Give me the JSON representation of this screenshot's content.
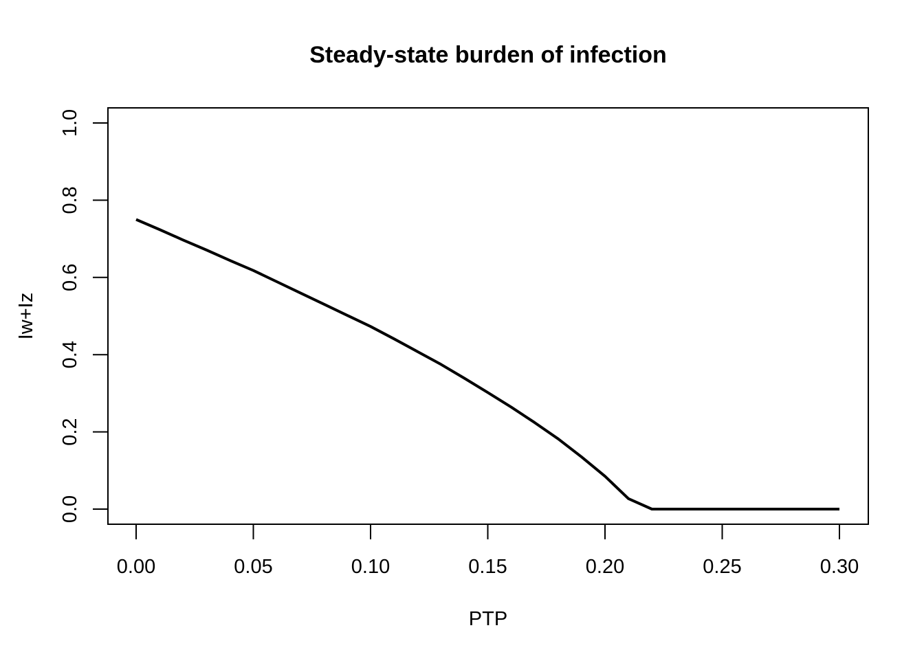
{
  "chart_data": {
    "type": "line",
    "title": "Steady-state burden of infection",
    "xlabel": "PTP",
    "ylabel": "Iw+Iz",
    "xlim": [
      0.0,
      0.3
    ],
    "ylim": [
      0.0,
      1.0
    ],
    "x_ticks": [
      "0.00",
      "0.05",
      "0.10",
      "0.15",
      "0.20",
      "0.25",
      "0.30"
    ],
    "y_ticks": [
      "0.0",
      "0.2",
      "0.4",
      "0.6",
      "0.8",
      "1.0"
    ],
    "grid": false,
    "legend": "none",
    "line_color": "#000000",
    "series": [
      {
        "x": [
          0.0,
          0.01,
          0.02,
          0.03,
          0.04,
          0.05,
          0.06,
          0.07,
          0.08,
          0.09,
          0.1,
          0.11,
          0.12,
          0.13,
          0.14,
          0.15,
          0.16,
          0.17,
          0.18,
          0.19,
          0.2,
          0.21,
          0.22,
          0.23,
          0.24,
          0.25,
          0.26,
          0.27,
          0.28,
          0.29,
          0.3
        ],
        "values": [
          0.75,
          0.724,
          0.697,
          0.671,
          0.644,
          0.618,
          0.589,
          0.56,
          0.531,
          0.502,
          0.473,
          0.441,
          0.408,
          0.375,
          0.339,
          0.302,
          0.264,
          0.224,
          0.182,
          0.135,
          0.085,
          0.027,
          0.0,
          0.0,
          0.0,
          0.0,
          0.0,
          0.0,
          0.0,
          0.0,
          0.0
        ]
      }
    ]
  }
}
